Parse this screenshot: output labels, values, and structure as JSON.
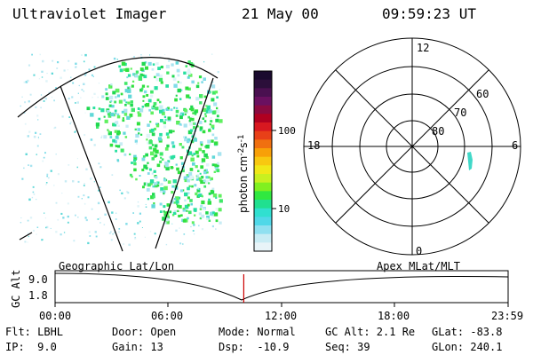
{
  "header": {
    "title": "Ultraviolet Imager",
    "date": "21 May 00",
    "time": "09:59:23 UT"
  },
  "colorbar": {
    "label": "photon cm-2s-1",
    "unit_base": "photon cm",
    "unit_exp1": "-2",
    "unit_mid": "s",
    "unit_exp2": "-1",
    "ticks": [
      "100",
      "10"
    ],
    "colors": [
      "#1a0a2e",
      "#2b0f3a",
      "#4a1050",
      "#6a1060",
      "#8a0a40",
      "#b00020",
      "#d81820",
      "#e84018",
      "#f07010",
      "#f8a008",
      "#f8c810",
      "#f0e818",
      "#c8f020",
      "#80f020",
      "#30e840",
      "#20e090",
      "#30e0d0",
      "#50d8e8",
      "#90e0f0",
      "#c8ecf4",
      "#e8f4f8"
    ]
  },
  "polar": {
    "hour_labels": {
      "top": "12",
      "left": "18",
      "right": "6",
      "bottom": "0"
    },
    "lat_labels": [
      "60",
      "70",
      "80"
    ]
  },
  "timeline": {
    "y_axis_label": "GC Alt",
    "y_ticks": {
      "top": "9.0",
      "bottom": "1.8"
    },
    "left_caption": "Geographic Lat/Lon",
    "right_caption": "Apex MLat/MLT",
    "x_ticks": [
      "00:00",
      "06:00",
      "12:00",
      "18:00",
      "23:59"
    ],
    "marker_color": "#cc0000",
    "marker_fraction": 0.4165
  },
  "footer": {
    "row1": {
      "flt": "Flt: LBHL",
      "door": "Door: Open",
      "mode": "Mode: Normal",
      "gcalt": "GC Alt: 2.1 Re",
      "glat": "GLat: -83.8"
    },
    "row2": {
      "ip": "IP:  9.0",
      "gain": "Gain: 13",
      "dsp": "Dsp:  -10.9",
      "seq": "Seq: 39",
      "glon": "GLon: 240.1"
    }
  }
}
